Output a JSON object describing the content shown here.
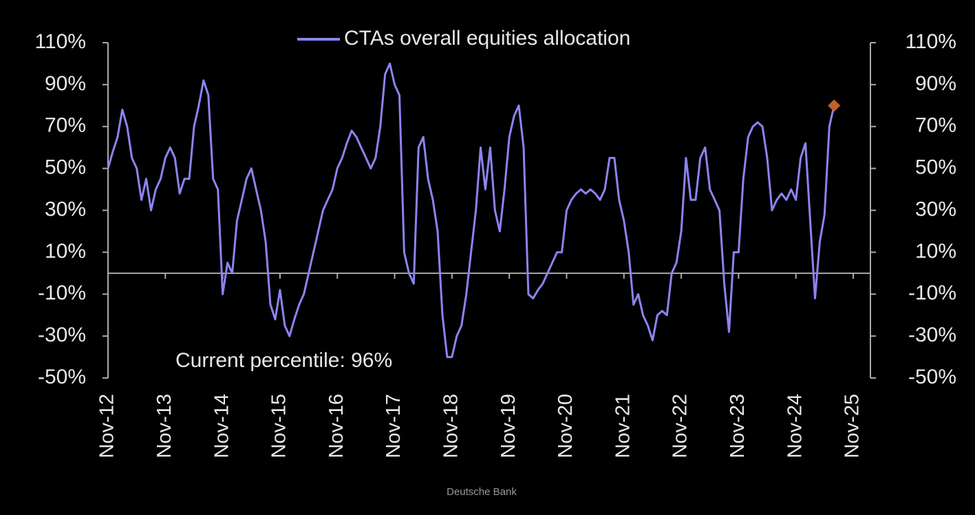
{
  "chart_data": {
    "type": "line",
    "title": "CTAs overall equities allocation",
    "annotation": "Current percentile: 96%",
    "source": "Deutsche Bank",
    "x": [
      "Nov-12",
      "Dec-12",
      "Jan-13",
      "Feb-13",
      "Mar-13",
      "Apr-13",
      "May-13",
      "Jun-13",
      "Jul-13",
      "Aug-13",
      "Sep-13",
      "Oct-13",
      "Nov-13",
      "Dec-13",
      "Jan-14",
      "Feb-14",
      "Mar-14",
      "Apr-14",
      "May-14",
      "Jun-14",
      "Jul-14",
      "Aug-14",
      "Sep-14",
      "Oct-14",
      "Nov-14",
      "Dec-14",
      "Jan-15",
      "Feb-15",
      "Mar-15",
      "Apr-15",
      "May-15",
      "Jun-15",
      "Jul-15",
      "Aug-15",
      "Sep-15",
      "Oct-15",
      "Nov-15",
      "Dec-15",
      "Jan-16",
      "Feb-16",
      "Mar-16",
      "Apr-16",
      "May-16",
      "Jun-16",
      "Jul-16",
      "Aug-16",
      "Sep-16",
      "Oct-16",
      "Nov-16",
      "Dec-16",
      "Jan-17",
      "Feb-17",
      "Mar-17",
      "Apr-17",
      "May-17",
      "Jun-17",
      "Jul-17",
      "Aug-17",
      "Sep-17",
      "Oct-17",
      "Nov-17",
      "Dec-17",
      "Jan-18",
      "Feb-18",
      "Mar-18",
      "Apr-18",
      "May-18",
      "Jun-18",
      "Jul-18",
      "Aug-18",
      "Sep-18",
      "Oct-18",
      "Nov-18",
      "Dec-18",
      "Jan-19",
      "Feb-19",
      "Mar-19",
      "Apr-19",
      "May-19",
      "Jun-19",
      "Jul-19",
      "Aug-19",
      "Sep-19",
      "Oct-19",
      "Nov-19",
      "Dec-19",
      "Jan-20",
      "Feb-20",
      "Mar-20",
      "Apr-20",
      "May-20",
      "Jun-20",
      "Jul-20",
      "Aug-20",
      "Sep-20",
      "Oct-20",
      "Nov-20",
      "Dec-20",
      "Jan-21",
      "Feb-21",
      "Mar-21",
      "Apr-21",
      "May-21",
      "Jun-21",
      "Jul-21",
      "Aug-21",
      "Sep-21",
      "Oct-21",
      "Nov-21",
      "Dec-21",
      "Jan-22",
      "Feb-22",
      "Mar-22",
      "Apr-22",
      "May-22",
      "Jun-22",
      "Jul-22",
      "Aug-22",
      "Sep-22",
      "Oct-22",
      "Nov-22",
      "Dec-22",
      "Jan-23",
      "Feb-23",
      "Mar-23",
      "Apr-23",
      "May-23",
      "Jun-23",
      "Jul-23",
      "Aug-23",
      "Sep-23",
      "Oct-23",
      "Nov-23",
      "Dec-23",
      "Jan-24",
      "Feb-24",
      "Mar-24",
      "Apr-24",
      "May-24",
      "Jun-24",
      "Jul-24",
      "Aug-24",
      "Sep-24",
      "Oct-24",
      "Nov-24",
      "Dec-24",
      "Jan-25",
      "Feb-25",
      "Mar-25",
      "Apr-25",
      "May-25",
      "Jun-25",
      "Jul-25"
    ],
    "series": [
      {
        "name": "CTAs overall equities allocation",
        "color": "#8c84f2",
        "marker_color": "#c0622a",
        "values": [
          50,
          58,
          65,
          78,
          70,
          55,
          50,
          35,
          45,
          30,
          40,
          45,
          55,
          60,
          55,
          38,
          45,
          45,
          70,
          80,
          92,
          85,
          45,
          40,
          -10,
          5,
          0,
          25,
          35,
          45,
          50,
          40,
          30,
          15,
          -15,
          -22,
          -8,
          -25,
          -30,
          -22,
          -15,
          -10,
          0,
          10,
          20,
          30,
          35,
          40,
          50,
          55,
          62,
          68,
          65,
          60,
          55,
          50,
          55,
          70,
          95,
          100,
          90,
          85,
          10,
          0,
          -5,
          60,
          65,
          45,
          35,
          20,
          -20,
          -40,
          -40,
          -30,
          -25,
          -10,
          10,
          30,
          60,
          40,
          60,
          30,
          20,
          40,
          65,
          75,
          80,
          60,
          -10,
          -12,
          -8,
          -5,
          0,
          5,
          10,
          10,
          30,
          35,
          38,
          40,
          38,
          40,
          38,
          35,
          40,
          55,
          55,
          35,
          25,
          10,
          -15,
          -10,
          -20,
          -25,
          -32,
          -20,
          -18,
          -20,
          0,
          5,
          20,
          55,
          35,
          35,
          55,
          60,
          40,
          35,
          30,
          -5,
          -28,
          10,
          10,
          45,
          65,
          70,
          72,
          70,
          55,
          30,
          35,
          38,
          35,
          40,
          35,
          55,
          62,
          25,
          -12,
          15,
          28,
          70,
          80
        ]
      }
    ],
    "xlim": [
      "Nov-12",
      "Nov-25"
    ],
    "xticks": [
      "Nov-12",
      "Nov-13",
      "Nov-14",
      "Nov-15",
      "Nov-16",
      "Nov-17",
      "Nov-18",
      "Nov-19",
      "Nov-20",
      "Nov-21",
      "Nov-22",
      "Nov-23",
      "Nov-24",
      "Nov-25"
    ],
    "ylim": [
      -50,
      110
    ],
    "yticks": [
      {
        "value": -50,
        "label": "-50%"
      },
      {
        "value": -30,
        "label": "-30%"
      },
      {
        "value": -10,
        "label": "-10%"
      },
      {
        "value": 10,
        "label": "10%"
      },
      {
        "value": 30,
        "label": "30%"
      },
      {
        "value": 50,
        "label": "50%"
      },
      {
        "value": 70,
        "label": "70%"
      },
      {
        "value": 90,
        "label": "90%"
      },
      {
        "value": 110,
        "label": "110%"
      }
    ],
    "y2lim": [
      -50,
      110
    ],
    "y2ticks": [
      {
        "value": -50,
        "label": "-50%"
      },
      {
        "value": -30,
        "label": "-30%"
      },
      {
        "value": -10,
        "label": "-10%"
      },
      {
        "value": 10,
        "label": "10%"
      },
      {
        "value": 30,
        "label": "30%"
      },
      {
        "value": 50,
        "label": "50%"
      },
      {
        "value": 70,
        "label": "70%"
      },
      {
        "value": 90,
        "label": "90%"
      },
      {
        "value": 110,
        "label": "110%"
      }
    ],
    "grid": false
  }
}
